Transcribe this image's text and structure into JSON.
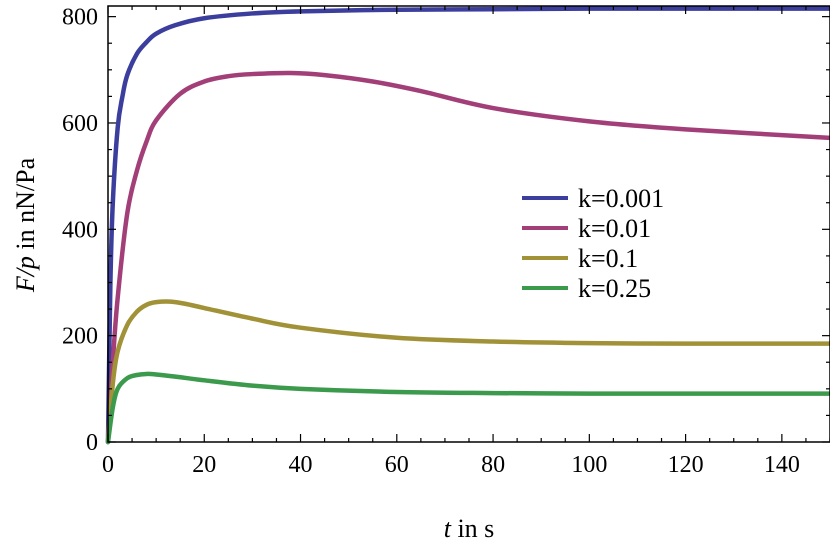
{
  "chart_data": {
    "type": "line",
    "xlabel_var": "t",
    "xlabel_rest": " in s",
    "ylabel_var": "F/p",
    "ylabel_rest": " in nN/Pa",
    "xlim": [
      0,
      150
    ],
    "ylim": [
      0,
      820
    ],
    "xticks": [
      0,
      20,
      40,
      60,
      80,
      100,
      120,
      140
    ],
    "yticks": [
      0,
      200,
      400,
      600,
      800
    ],
    "grid": false,
    "legend_position": "center-right",
    "series": [
      {
        "name": "k=0.001",
        "color": "#3b3e9d",
        "x": [
          0,
          0.5,
          1,
          2,
          3,
          4,
          6,
          8,
          10,
          14,
          20,
          30,
          40,
          60,
          80,
          100,
          120,
          150
        ],
        "y": [
          0,
          300,
          450,
          590,
          650,
          690,
          730,
          752,
          768,
          784,
          797,
          806,
          810,
          813,
          814,
          815,
          815,
          815
        ]
      },
      {
        "name": "k=0.01",
        "color": "#a33f78",
        "x": [
          0,
          1,
          2,
          4,
          6,
          8,
          10,
          15,
          20,
          25,
          30,
          38,
          45,
          55,
          65,
          80,
          100,
          120,
          150
        ],
        "y": [
          0,
          150,
          270,
          430,
          510,
          565,
          605,
          655,
          678,
          688,
          692,
          694,
          690,
          678,
          660,
          628,
          603,
          588,
          572
        ]
      },
      {
        "name": "k=0.1",
        "color": "#a19238",
        "x": [
          0,
          1,
          2,
          4,
          6,
          8,
          10,
          13,
          16,
          20,
          30,
          40,
          60,
          80,
          100,
          120,
          150
        ],
        "y": [
          0,
          110,
          170,
          220,
          245,
          258,
          263,
          264,
          260,
          252,
          232,
          215,
          196,
          189,
          186,
          185,
          185
        ]
      },
      {
        "name": "k=0.25",
        "color": "#3c9a4d",
        "x": [
          0,
          1,
          2,
          4,
          6,
          8,
          10,
          14,
          20,
          30,
          40,
          60,
          80,
          100,
          120,
          150
        ],
        "y": [
          0,
          65,
          100,
          120,
          126,
          128,
          127,
          123,
          116,
          106,
          100,
          94,
          92,
          91,
          91,
          91
        ]
      }
    ]
  }
}
